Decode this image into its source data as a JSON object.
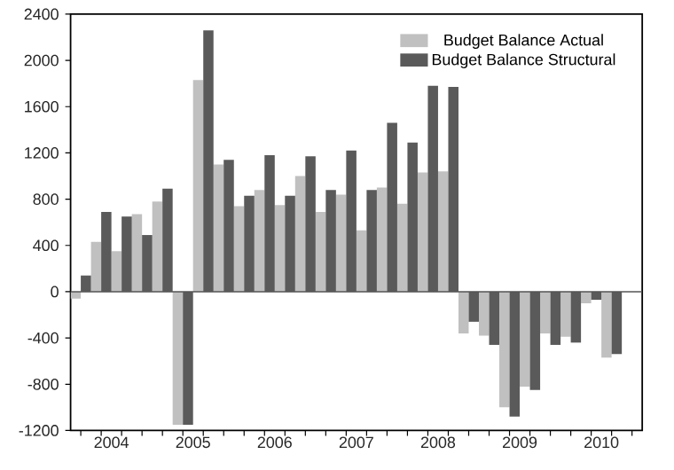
{
  "chart_data": {
    "type": "bar",
    "x": [
      2004.125,
      2004.375,
      2004.625,
      2004.875,
      2005.125,
      2005.375,
      2005.625,
      2005.875,
      2006.125,
      2006.375,
      2006.625,
      2006.875,
      2007.125,
      2007.375,
      2007.625,
      2007.875,
      2008.125,
      2008.375,
      2008.625,
      2008.875,
      2009.125,
      2009.375,
      2009.625,
      2009.875,
      2010.125,
      2010.375,
      2010.625
    ],
    "series": [
      {
        "name": "Budget Balance Actual",
        "color": "#c0c0c0",
        "values": [
          -60,
          430,
          350,
          670,
          780,
          -1150,
          1830,
          1100,
          740,
          880,
          750,
          1000,
          690,
          840,
          530,
          900,
          760,
          1030,
          1040,
          -360,
          -380,
          -1000,
          -820,
          -360,
          -390,
          -100,
          -570
        ]
      },
      {
        "name": "Budget Balance Structural",
        "color": "#5a5a5a",
        "values": [
          140,
          690,
          650,
          490,
          890,
          -1150,
          2260,
          1140,
          830,
          1180,
          830,
          1170,
          880,
          1220,
          880,
          1460,
          1290,
          1780,
          1770,
          -260,
          -460,
          -1080,
          -850,
          -460,
          -440,
          -70,
          -540
        ]
      }
    ],
    "xlim": [
      2004,
      2011
    ],
    "xticks": [
      {
        "value": 2004.125,
        "label": null
      },
      {
        "value": 2004.375,
        "label": null
      },
      {
        "value": 2004.5,
        "label": "2004"
      },
      {
        "value": 2004.625,
        "label": null
      },
      {
        "value": 2004.875,
        "label": null
      },
      {
        "value": 2005.125,
        "label": null
      },
      {
        "value": 2005.375,
        "label": null
      },
      {
        "value": 2005.5,
        "label": "2005"
      },
      {
        "value": 2005.625,
        "label": null
      },
      {
        "value": 2005.875,
        "label": null
      },
      {
        "value": 2006.125,
        "label": null
      },
      {
        "value": 2006.375,
        "label": null
      },
      {
        "value": 2006.5,
        "label": "2006"
      },
      {
        "value": 2006.625,
        "label": null
      },
      {
        "value": 2006.875,
        "label": null
      },
      {
        "value": 2007.125,
        "label": null
      },
      {
        "value": 2007.375,
        "label": null
      },
      {
        "value": 2007.5,
        "label": "2007"
      },
      {
        "value": 2007.625,
        "label": null
      },
      {
        "value": 2007.875,
        "label": null
      },
      {
        "value": 2008.125,
        "label": null
      },
      {
        "value": 2008.375,
        "label": null
      },
      {
        "value": 2008.5,
        "label": "2008"
      },
      {
        "value": 2008.625,
        "label": null
      },
      {
        "value": 2008.875,
        "label": null
      },
      {
        "value": 2009.125,
        "label": null
      },
      {
        "value": 2009.375,
        "label": null
      },
      {
        "value": 2009.5,
        "label": "2009"
      },
      {
        "value": 2009.625,
        "label": null
      },
      {
        "value": 2009.875,
        "label": null
      },
      {
        "value": 2010.125,
        "label": null
      },
      {
        "value": 2010.375,
        "label": null
      },
      {
        "value": 2010.5,
        "label": "2010"
      },
      {
        "value": 2010.625,
        "label": null
      },
      {
        "value": 2010.875,
        "label": null
      }
    ],
    "ylim": [
      -1200,
      2400
    ],
    "yticks": [
      -1200,
      -800,
      -400,
      0,
      400,
      800,
      1200,
      1600,
      2000,
      2400
    ],
    "ref_lines": [
      {
        "axis": "y",
        "value": 0,
        "color": "#555555"
      }
    ],
    "grid": false,
    "legend": "top right"
  }
}
